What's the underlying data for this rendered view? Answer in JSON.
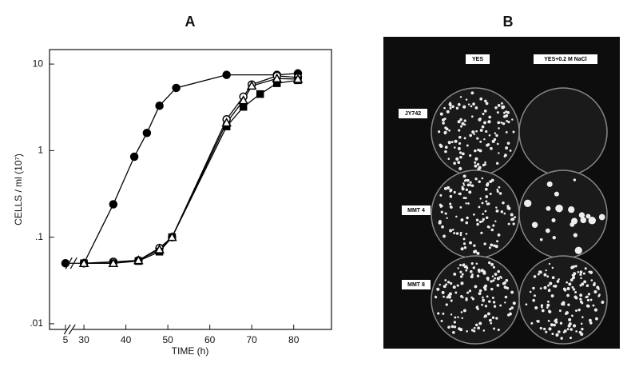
{
  "chart_data": {
    "type": "line",
    "title": "A",
    "x_label": "TIME (h)",
    "y_label": "CELLS / ml   (10⁷)",
    "xlim": [
      1.2,
      89
    ],
    "xbreak": [
      6,
      26.6
    ],
    "xticks": [
      5,
      30,
      40,
      50,
      60,
      70,
      80
    ],
    "ylim": [
      0.0086,
      14.7
    ],
    "log_y": true,
    "yticks": [
      {
        "value": 0.01,
        "label": ".01"
      },
      {
        "value": 0.1,
        "label": ".1"
      },
      1,
      10
    ],
    "series": [
      {
        "marker": "filled-circle",
        "color": "#000000",
        "x": [
          5,
          30,
          37,
          42,
          45,
          48,
          52,
          64,
          76,
          81
        ],
        "values": [
          0.05,
          0.05,
          0.24,
          0.85,
          1.6,
          3.3,
          5.3,
          7.5,
          7.5,
          7.8
        ]
      },
      {
        "marker": "open-circle",
        "color": "#000000",
        "x": [
          30,
          37,
          43,
          48,
          51,
          64,
          68,
          70,
          76,
          81
        ],
        "values": [
          0.05,
          0.052,
          0.054,
          0.075,
          0.1,
          2.3,
          4.2,
          5.8,
          7.3,
          7.0
        ]
      },
      {
        "marker": "filled-square",
        "color": "#000000",
        "x": [
          30,
          37,
          43,
          48,
          51,
          64,
          68,
          72,
          76,
          81
        ],
        "values": [
          0.05,
          0.05,
          0.053,
          0.068,
          0.1,
          1.9,
          3.2,
          4.5,
          6.0,
          6.5
        ]
      },
      {
        "marker": "open-triangle",
        "color": "#000000",
        "x": [
          30,
          37,
          43,
          48,
          51,
          64,
          68,
          70,
          76,
          81
        ],
        "values": [
          0.05,
          0.05,
          0.054,
          0.072,
          0.1,
          2.1,
          3.8,
          5.6,
          6.8,
          6.7
        ]
      }
    ]
  },
  "photo": {
    "title": "B",
    "columns": [
      "YES",
      "YES+0.2 M NaCl"
    ],
    "rows": [
      "JY742",
      "MMT 4",
      "MMT 8"
    ]
  }
}
